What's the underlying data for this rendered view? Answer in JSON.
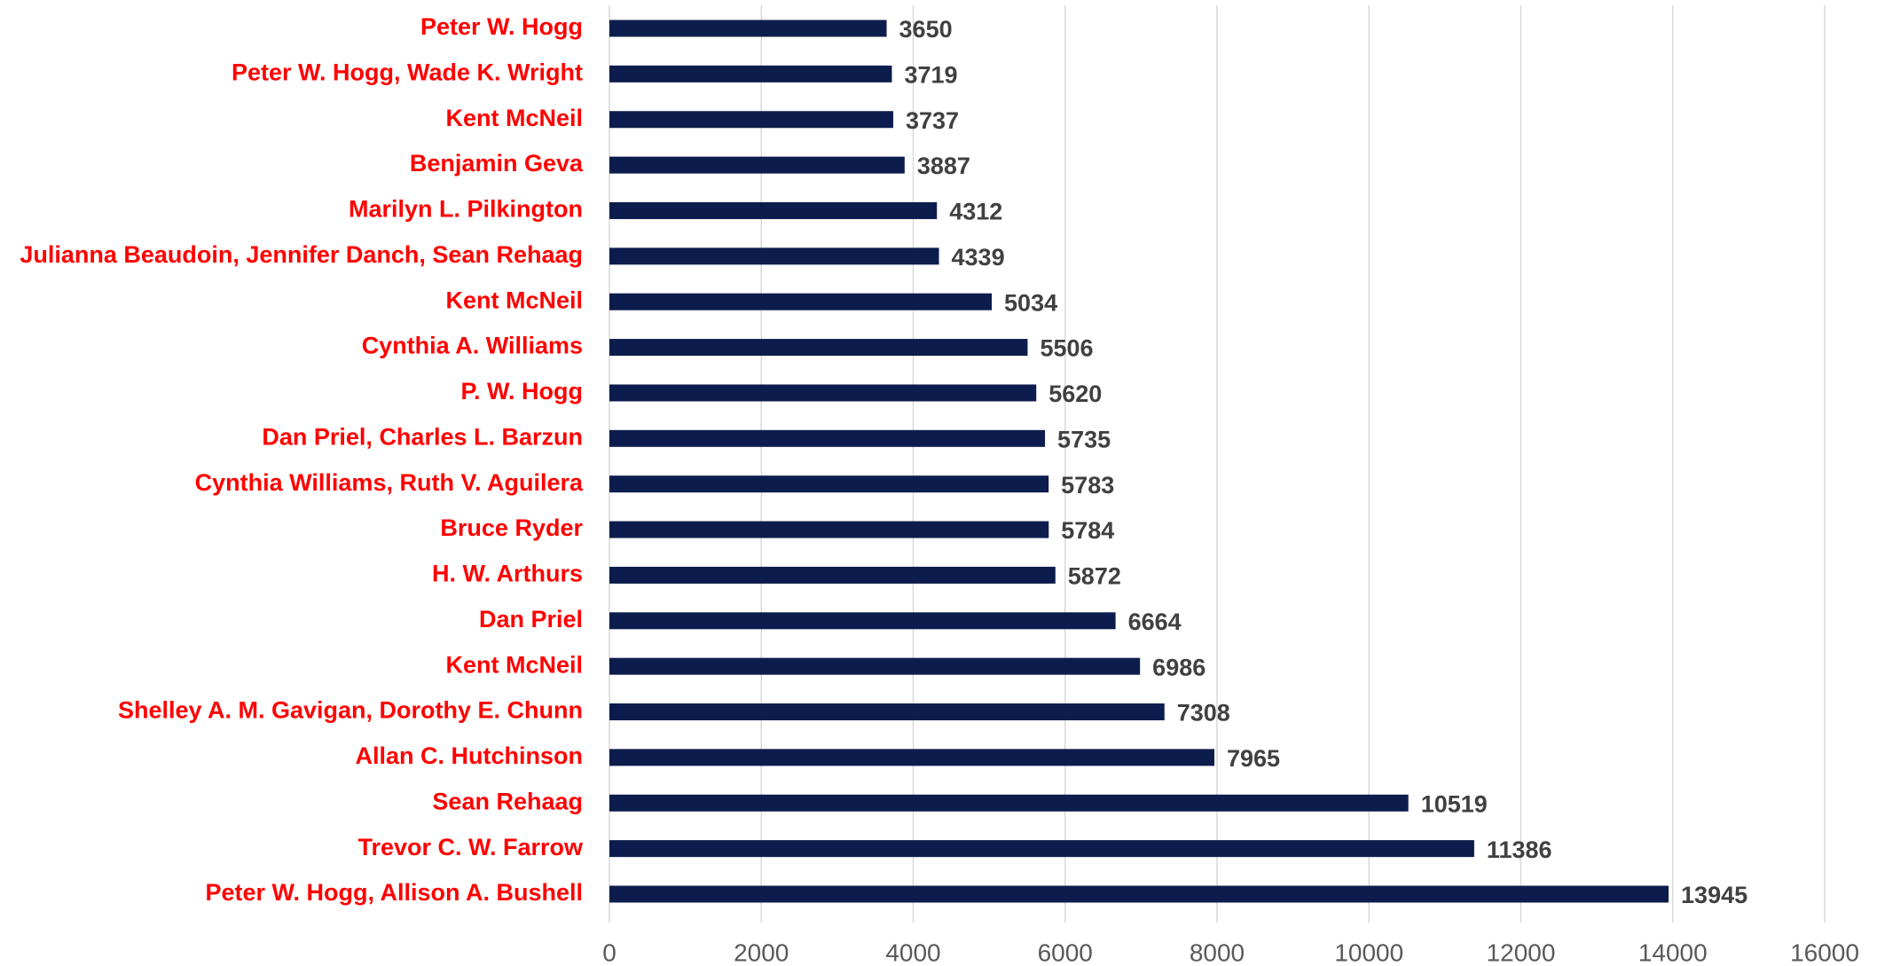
{
  "chart_data": {
    "type": "bar",
    "orientation": "horizontal",
    "categories": [
      "Peter W. Hogg",
      "Peter W. Hogg, Wade K. Wright",
      "Kent McNeil",
      "Benjamin Geva",
      "Marilyn L. Pilkington",
      "Julianna Beaudoin, Jennifer Danch, Sean Rehaag",
      "Kent McNeil",
      "Cynthia A. Williams",
      "P. W. Hogg",
      "Dan Priel, Charles L. Barzun",
      "Cynthia Williams, Ruth V. Aguilera",
      "Bruce Ryder",
      "H. W. Arthurs",
      "Dan Priel",
      "Kent McNeil",
      "Shelley A. M. Gavigan, Dorothy E. Chunn",
      "Allan C. Hutchinson",
      "Sean Rehaag",
      "Trevor C. W. Farrow",
      "Peter W. Hogg, Allison A. Bushell"
    ],
    "values": [
      3650,
      3719,
      3737,
      3887,
      4312,
      4339,
      5034,
      5506,
      5620,
      5735,
      5783,
      5784,
      5872,
      6664,
      6986,
      7308,
      7965,
      10519,
      11386,
      13945
    ],
    "color": "#0c1d4d",
    "xlim": [
      0,
      16000
    ],
    "xticks": [
      0,
      2000,
      4000,
      6000,
      8000,
      10000,
      12000,
      14000,
      16000
    ],
    "grid": true
  }
}
